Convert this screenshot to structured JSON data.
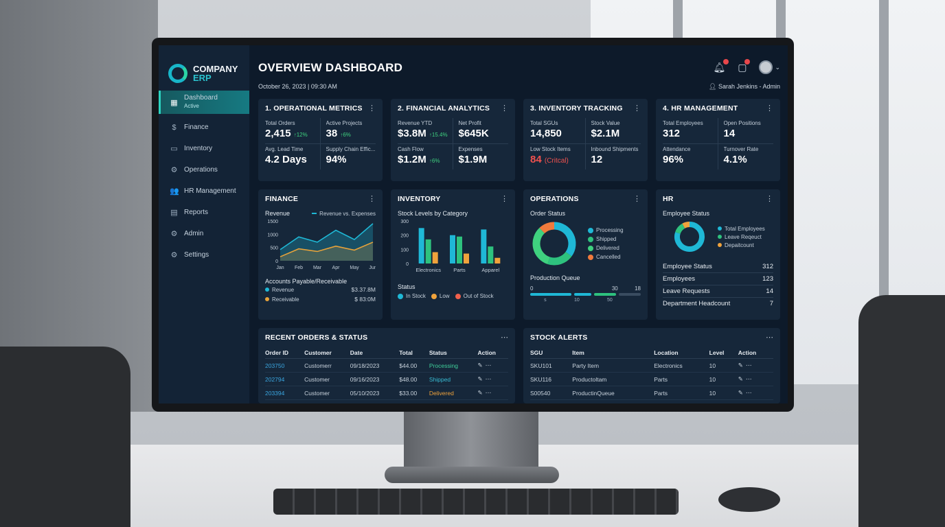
{
  "brand": {
    "name": "COMPANY",
    "sub": "ERP"
  },
  "sidebar": {
    "items": [
      {
        "label": "Dashboard",
        "sub": "Active",
        "icon": "grid-icon"
      },
      {
        "label": "Finance",
        "icon": "dollar-icon"
      },
      {
        "label": "Inventory",
        "icon": "box-icon"
      },
      {
        "label": "Operations",
        "icon": "cogs-icon"
      },
      {
        "label": "HR Management",
        "icon": "people-icon"
      },
      {
        "label": "Reports",
        "icon": "document-icon"
      },
      {
        "label": "Admin",
        "icon": "gear-icon"
      },
      {
        "label": "Settings",
        "icon": "gear-icon"
      }
    ]
  },
  "header": {
    "title": "OVERVIEW DASHBOARD",
    "datetime": "October 26, 2023 | 09:30 AM",
    "user": "Sarah Jenkins - Admin"
  },
  "kpi_cards": [
    {
      "title": "1. OPERATIONAL METRICS",
      "metrics": [
        {
          "label": "Total Orders",
          "value": "2,415",
          "delta": "↑12%"
        },
        {
          "label": "Active Projects",
          "value": "38",
          "delta": "↑6%"
        },
        {
          "label": "Avg. Lead Time",
          "value": "4.2 Days"
        },
        {
          "label": "Supply Chain Effic...",
          "value": "94%"
        }
      ]
    },
    {
      "title": "2. FINANCIAL ANALYTICS",
      "metrics": [
        {
          "label": "Revenue YTD",
          "value": "$3.8M",
          "delta": "↑15.4%"
        },
        {
          "label": "Net Profit",
          "value": "$645K"
        },
        {
          "label": "Cash Flow",
          "value": "$1.2M",
          "delta": "↑6%"
        },
        {
          "label": "Expenses",
          "value": "$1.9M"
        }
      ]
    },
    {
      "title": "3. INVENTORY TRACKING",
      "metrics": [
        {
          "label": "Total SGUs",
          "value": "14,850"
        },
        {
          "label": "Stock Value",
          "value": "$2.1M"
        },
        {
          "label": "Low Stock Items",
          "value": "84",
          "note": "(Critcal)"
        },
        {
          "label": "Inbound Shipments",
          "value": "12"
        }
      ]
    },
    {
      "title": "4. HR MANAGEMENT",
      "metrics": [
        {
          "label": "Total Employees",
          "value": "312"
        },
        {
          "label": "Open Positions",
          "value": "14"
        },
        {
          "label": "Attendance",
          "value": "96%"
        },
        {
          "label": "Turnover Rate",
          "value": "4.1%"
        }
      ]
    }
  ],
  "finance": {
    "title": "FINANCE",
    "chart_label": "Revenue",
    "legend": "Revenue vs. Expenses",
    "ap_title": "Accounts Payable/Receivable",
    "ap": [
      {
        "label": "Revenue",
        "value": "$3.37.8M"
      },
      {
        "label": "Receivable",
        "value": "$ 83:0M"
      }
    ]
  },
  "inventory": {
    "title": "INVENTORY",
    "chart_label": "Stock Levels by Category",
    "status_label": "Status",
    "status_legend": [
      "In Stock",
      "Low",
      "Out of Stock"
    ]
  },
  "operations": {
    "title": "OPERATIONS",
    "order_status_label": "Order Status",
    "legend": [
      "Processing",
      "Shipped",
      "Delivered",
      "Cancelled"
    ],
    "queue_label": "Production Queue",
    "queue_top": [
      "0",
      "30",
      "18"
    ],
    "queue_bottom": [
      "s",
      "10",
      "50"
    ]
  },
  "hr": {
    "title": "HR",
    "status_label": "Employee Status",
    "legend": [
      "Total Employees",
      "Leave Reqeuct",
      "Depaitcount"
    ],
    "rows": [
      {
        "label": "Employee Status",
        "value": "312"
      },
      {
        "label": "Employees",
        "value": "123"
      },
      {
        "label": "Leave Requests",
        "value": "14"
      },
      {
        "label": "Department Headcount",
        "value": "7"
      }
    ]
  },
  "orders": {
    "title": "RECENT ORDERS & STATUS",
    "columns": [
      "Order ID",
      "Customer",
      "Date",
      "Total",
      "Status",
      "Action"
    ],
    "rows": [
      {
        "id": "203750",
        "customer": "Customerr",
        "date": "09/18/2023",
        "total": "$44.00",
        "status": "Processing"
      },
      {
        "id": "202794",
        "customer": "Customer",
        "date": "09/16/2023",
        "total": "$48.00",
        "status": "Shipped"
      },
      {
        "id": "203394",
        "customer": "Customer",
        "date": "05/10/2023",
        "total": "$33.00",
        "status": "Delivered"
      }
    ]
  },
  "alerts": {
    "title": "STOCK ALERTS",
    "columns": [
      "SGU",
      "Item",
      "Location",
      "Level",
      "Action"
    ],
    "rows": [
      {
        "sgu": "SKU101",
        "item": "Party Item",
        "location": "Electronics",
        "level": "10"
      },
      {
        "sgu": "SKU116",
        "item": "Productoltam",
        "location": "Parts",
        "level": "10"
      },
      {
        "sgu": "S00540",
        "item": "ProductinQueue",
        "location": "Parts",
        "level": "10"
      }
    ]
  },
  "chart_data": [
    {
      "type": "area",
      "title": "Revenue",
      "categories": [
        "Jan",
        "Feb",
        "Mar",
        "Apr",
        "May",
        "Jun"
      ],
      "ylim": [
        0,
        1500
      ],
      "yticks": [
        "1500",
        "1000",
        "500",
        "0"
      ],
      "series": [
        {
          "name": "Revenue",
          "values": [
            420,
            900,
            700,
            1150,
            800,
            1400
          ]
        },
        {
          "name": "Expenses",
          "values": [
            150,
            450,
            350,
            550,
            400,
            700
          ]
        }
      ],
      "colors": [
        "#1fb8d6",
        "#e8a33a"
      ]
    },
    {
      "type": "bar",
      "title": "Stock Levels by Category",
      "categories": [
        "Electronics",
        "Parts",
        "Apparel"
      ],
      "ylim": [
        0,
        300
      ],
      "yticks": [
        "300",
        "200",
        "100",
        "0"
      ],
      "series": [
        {
          "name": "In Stock",
          "values": [
            250,
            200,
            240
          ]
        },
        {
          "name": "Low",
          "values": [
            170,
            190,
            120
          ]
        },
        {
          "name": "Out of Stock",
          "values": [
            80,
            70,
            40
          ]
        }
      ],
      "colors": [
        "#1fb8d6",
        "#2ec27e",
        "#f0a33c"
      ]
    },
    {
      "type": "pie",
      "title": "Order Status",
      "labels": [
        "Processing",
        "Shipped",
        "Delivered",
        "Cancelled"
      ],
      "values": [
        35,
        20,
        33,
        12
      ],
      "colors": [
        "#1fb8d6",
        "#2ec27e",
        "#3fd17f",
        "#f07a3c"
      ]
    },
    {
      "type": "pie",
      "title": "Employee Status",
      "labels": [
        "Total Employees",
        "Leave Reqeuct",
        "Depaitcount"
      ],
      "values": [
        80,
        12,
        8
      ],
      "colors": [
        "#1fb8d6",
        "#2ec27e",
        "#f0a33c"
      ]
    }
  ],
  "colors": {
    "accent": "#2bd4c0",
    "background": "#0d1a2a",
    "card": "#16273a",
    "critical": "#f0524f",
    "positive": "#3fd17f"
  }
}
